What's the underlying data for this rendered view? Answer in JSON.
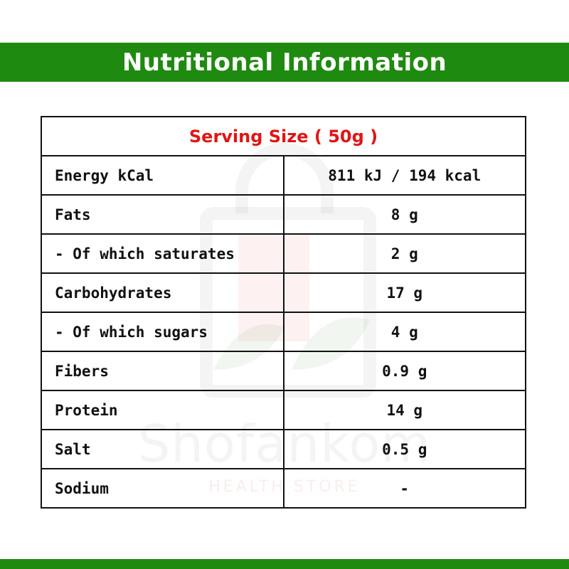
{
  "header": {
    "title": "Nutritional Information"
  },
  "watermark": {
    "brand": "Shofankom",
    "subtitle": "HEALTH STORE"
  },
  "table": {
    "serving_size": "Serving Size ( 50g )",
    "rows": [
      {
        "label": "Energy kCal",
        "value": "811 kJ / 194 kcal"
      },
      {
        "label": "Fats",
        "value": "8 g"
      },
      {
        "label": "- Of which saturates",
        "value": "2 g"
      },
      {
        "label": "Carbohydrates",
        "value": "17 g"
      },
      {
        "label": "- Of which sugars",
        "value": "4 g"
      },
      {
        "label": "Fibers",
        "value": "0.9 g"
      },
      {
        "label": "Protein",
        "value": "14 g"
      },
      {
        "label": "Salt",
        "value": "0.5 g"
      },
      {
        "label": "Sodium",
        "value": "-"
      }
    ]
  },
  "colors": {
    "brand_green": "#1f8a10",
    "serving_red": "#e01515"
  }
}
